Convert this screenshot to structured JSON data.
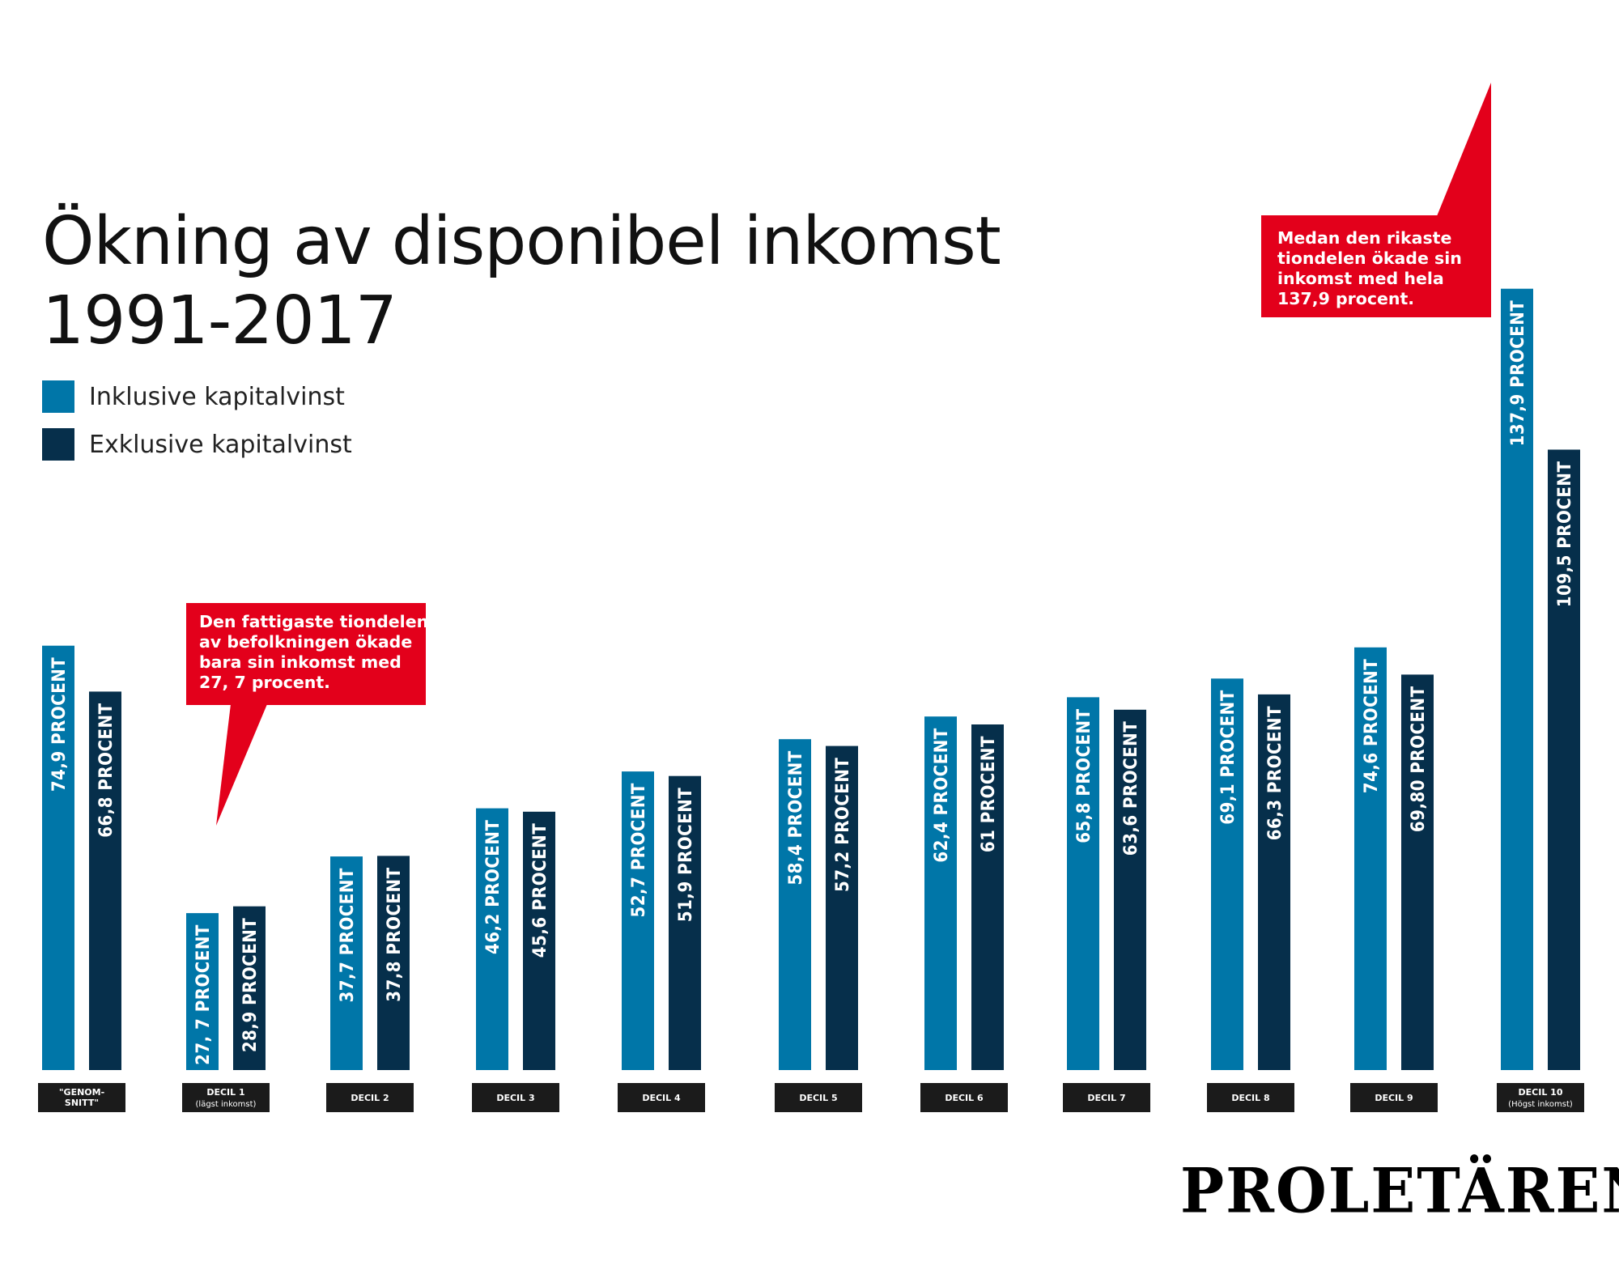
{
  "chart_data": {
    "type": "bar",
    "title_line1": "Ökning av disponibel inkomst",
    "title_line2": "1991-2017",
    "ylim": [
      0,
      140
    ],
    "grid": false,
    "legend_position": "top-left",
    "categories": [
      {
        "label": "\"GENOM-\nSNITT\"",
        "sub": ""
      },
      {
        "label": "DECIL 1",
        "sub": "(lägst inkomst)"
      },
      {
        "label": "DECIL 2",
        "sub": ""
      },
      {
        "label": "DECIL 3",
        "sub": ""
      },
      {
        "label": "DECIL 4",
        "sub": ""
      },
      {
        "label": "DECIL 5",
        "sub": ""
      },
      {
        "label": "DECIL 6",
        "sub": ""
      },
      {
        "label": "DECIL 7",
        "sub": ""
      },
      {
        "label": "DECIL 8",
        "sub": ""
      },
      {
        "label": "DECIL 9",
        "sub": ""
      },
      {
        "label": "DECIL 10",
        "sub": "(Högst inkomst)"
      }
    ],
    "series": [
      {
        "name": "Inklusive kapitalvinst",
        "color": "#0076a8",
        "values": [
          74.9,
          27.7,
          37.7,
          46.2,
          52.7,
          58.4,
          62.4,
          65.8,
          69.1,
          74.6,
          137.9
        ],
        "labels": [
          "74,9 PROCENT",
          "27, 7 PROCENT",
          "37,7 PROCENT",
          "46,2 PROCENT",
          "52,7 PROCENT",
          "58,4 PROCENT",
          "62,4 PROCENT",
          "65,8 PROCENT",
          "69,1 PROCENT",
          "74,6 PROCENT",
          "137,9 PROCENT"
        ]
      },
      {
        "name": "Exklusive kapitalvinst",
        "color": "#062f4b",
        "values": [
          66.8,
          28.9,
          37.8,
          45.6,
          51.9,
          57.2,
          61,
          63.6,
          66.3,
          69.8,
          109.5
        ],
        "labels": [
          "66,8 PROCENT",
          "28,9 PROCENT",
          "37,8 PROCENT",
          "45,6 PROCENT",
          "51,9 PROCENT",
          "57,2 PROCENT",
          "61 PROCENT",
          "63,6 PROCENT",
          "66,3 PROCENT",
          "69,80 PROCENT",
          "109,5 PROCENT"
        ]
      }
    ],
    "annotations": [
      {
        "text": "Den fattigaste tiondelen av befolkningen ökade bara sin inkomst med 27, 7 procent.",
        "lines": [
          "Den fattigaste tiondelen",
          "av befolkningen ökade",
          "bara sin inkomst med",
          "27, 7 procent."
        ],
        "target": "DECIL 1",
        "color": "#e3001b"
      },
      {
        "text": "Medan den rikaste tiondelen ökade sin inkomst med hela 137,9 procent.",
        "lines": [
          "Medan den rikaste",
          "tiondelen ökade sin",
          "inkomst med hela",
          "137,9 procent."
        ],
        "target": "DECIL 10",
        "color": "#e3001b"
      }
    ]
  },
  "legend": {
    "items": [
      {
        "label": "Inklusive kapitalvinst",
        "color": "#0076a8"
      },
      {
        "label": "Exklusive kapitalvinst",
        "color": "#062f4b"
      }
    ]
  },
  "brand": {
    "logo_text": "PROLETÄREN"
  }
}
